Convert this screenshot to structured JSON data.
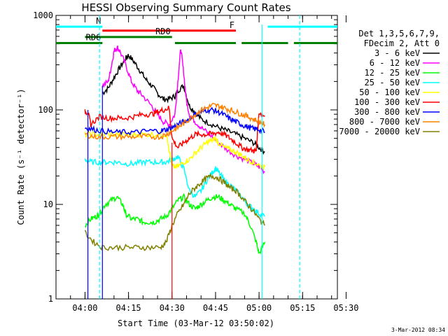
{
  "chart_data": {
    "type": "line",
    "title": "HESSI Observing Summary Count Rates",
    "xlabel": "Start Time (03-Mar-12 03:50:02)",
    "ylabel": "Count Rate (s⁻¹ detector⁻¹)",
    "yscale": "log",
    "ylim": [
      1,
      1000
    ],
    "x_minutes_range": [
      0,
      97
    ],
    "x_ticks": [
      {
        "label": "04:00",
        "t": 10
      },
      {
        "label": "04:15",
        "t": 25
      },
      {
        "label": "04:30",
        "t": 40
      },
      {
        "label": "04:45",
        "t": 55
      },
      {
        "label": "05:00",
        "t": 70
      },
      {
        "label": "05:15",
        "t": 85
      },
      {
        "label": "05:30",
        "t": 100
      }
    ],
    "y_ticks": [
      {
        "label": "1",
        "v": 1
      },
      {
        "label": "10",
        "v": 10
      },
      {
        "label": "100",
        "v": 100
      },
      {
        "label": "1000",
        "v": 1000
      }
    ],
    "legend_header": [
      "Det 1,3,5,6,7,9,",
      "FDecim 2, Att 0"
    ],
    "legend_position": "right",
    "series": [
      {
        "name": "3 - 6 keV",
        "color": "#000000",
        "points": [
          [
            16,
            150
          ],
          [
            18,
            170
          ],
          [
            20,
            220
          ],
          [
            22,
            280
          ],
          [
            24,
            350
          ],
          [
            25,
            380
          ],
          [
            27,
            320
          ],
          [
            29,
            260
          ],
          [
            31,
            210
          ],
          [
            33,
            180
          ],
          [
            35,
            150
          ],
          [
            37,
            130
          ],
          [
            39,
            130
          ],
          [
            41,
            140
          ],
          [
            42,
            160
          ],
          [
            44,
            180
          ],
          [
            46,
            110
          ],
          [
            48,
            95
          ],
          [
            50,
            80
          ],
          [
            53,
            72
          ],
          [
            56,
            65
          ],
          [
            59,
            60
          ],
          [
            62,
            55
          ],
          [
            65,
            50
          ],
          [
            68,
            45
          ],
          [
            70,
            40
          ],
          [
            72,
            36
          ]
        ]
      },
      {
        "name": "6 - 12 keV",
        "color": "#ff00ff",
        "points": [
          [
            16,
            180
          ],
          [
            18,
            200
          ],
          [
            19,
            280
          ],
          [
            20,
            420
          ],
          [
            21,
            460
          ],
          [
            22,
            420
          ],
          [
            24,
            300
          ],
          [
            26,
            200
          ],
          [
            28,
            160
          ],
          [
            30,
            140
          ],
          [
            33,
            110
          ],
          [
            35,
            90
          ],
          [
            37,
            75
          ],
          [
            39,
            70
          ],
          [
            41,
            90
          ],
          [
            42,
            200
          ],
          [
            43,
            450
          ],
          [
            44,
            250
          ],
          [
            45,
            120
          ],
          [
            46,
            90
          ],
          [
            48,
            75
          ],
          [
            50,
            65
          ],
          [
            53,
            55
          ],
          [
            56,
            45
          ],
          [
            59,
            38
          ],
          [
            62,
            33
          ],
          [
            65,
            30
          ],
          [
            68,
            27
          ],
          [
            70,
            25
          ],
          [
            72,
            22
          ]
        ]
      },
      {
        "name": "12 - 25 keV",
        "color": "#00ff00",
        "points": [
          [
            10,
            6
          ],
          [
            12,
            7
          ],
          [
            14,
            7.5
          ],
          [
            15,
            8
          ],
          [
            17,
            10
          ],
          [
            19,
            11
          ],
          [
            21,
            12
          ],
          [
            23,
            10
          ],
          [
            24,
            8
          ],
          [
            26,
            7
          ],
          [
            28,
            7
          ],
          [
            30,
            6.5
          ],
          [
            32,
            6.5
          ],
          [
            34,
            6.5
          ],
          [
            36,
            7
          ],
          [
            38,
            7.5
          ],
          [
            40,
            9
          ],
          [
            42,
            11
          ],
          [
            44,
            12
          ],
          [
            46,
            10
          ],
          [
            48,
            9
          ],
          [
            50,
            10
          ],
          [
            52,
            11
          ],
          [
            54,
            12
          ],
          [
            56,
            12
          ],
          [
            58,
            11
          ],
          [
            60,
            10
          ],
          [
            62,
            9
          ],
          [
            65,
            8
          ],
          [
            67,
            6
          ],
          [
            69,
            4
          ],
          [
            70,
            3
          ],
          [
            72,
            4
          ]
        ]
      },
      {
        "name": "25 - 50 keV",
        "color": "#00ffff",
        "points": [
          [
            10,
            30
          ],
          [
            12,
            28
          ],
          [
            15,
            28
          ],
          [
            18,
            28
          ],
          [
            21,
            28
          ],
          [
            24,
            27
          ],
          [
            27,
            27
          ],
          [
            30,
            28
          ],
          [
            33,
            28
          ],
          [
            36,
            28
          ],
          [
            38,
            28
          ],
          [
            40,
            30
          ],
          [
            42,
            32
          ],
          [
            44,
            24
          ],
          [
            46,
            14
          ],
          [
            48,
            12
          ],
          [
            50,
            14
          ],
          [
            52,
            18
          ],
          [
            54,
            22
          ],
          [
            55,
            24
          ],
          [
            56,
            22
          ],
          [
            58,
            18
          ],
          [
            60,
            16
          ],
          [
            62,
            14
          ],
          [
            64,
            12
          ],
          [
            66,
            10
          ],
          [
            68,
            9
          ],
          [
            70,
            8
          ],
          [
            72,
            7.5
          ]
        ]
      },
      {
        "name": "50 - 100 keV",
        "color": "#ffff00",
        "points": [
          [
            10,
            55
          ],
          [
            13,
            55
          ],
          [
            16,
            55
          ],
          [
            20,
            55
          ],
          [
            24,
            55
          ],
          [
            28,
            55
          ],
          [
            32,
            55
          ],
          [
            36,
            55
          ],
          [
            38,
            55
          ],
          [
            40,
            25
          ],
          [
            42,
            25
          ],
          [
            44,
            28
          ],
          [
            46,
            30
          ],
          [
            48,
            35
          ],
          [
            50,
            40
          ],
          [
            52,
            45
          ],
          [
            54,
            48
          ],
          [
            55,
            50
          ],
          [
            56,
            45
          ],
          [
            58,
            40
          ],
          [
            60,
            38
          ],
          [
            62,
            36
          ],
          [
            64,
            33
          ],
          [
            66,
            30
          ],
          [
            68,
            28
          ],
          [
            70,
            26
          ],
          [
            72,
            25
          ]
        ]
      },
      {
        "name": "100 - 300 keV",
        "color": "#ff0000",
        "points": [
          [
            10,
            95
          ],
          [
            11,
            95
          ],
          [
            12,
            70
          ],
          [
            15,
            85
          ],
          [
            18,
            82
          ],
          [
            21,
            82
          ],
          [
            24,
            82
          ],
          [
            27,
            85
          ],
          [
            30,
            90
          ],
          [
            33,
            90
          ],
          [
            35,
            95
          ],
          [
            37,
            100
          ],
          [
            39,
            105
          ],
          [
            40,
            50
          ],
          [
            42,
            40
          ],
          [
            44,
            45
          ],
          [
            46,
            50
          ],
          [
            48,
            55
          ],
          [
            50,
            55
          ],
          [
            52,
            55
          ],
          [
            54,
            56
          ],
          [
            56,
            58
          ],
          [
            58,
            55
          ],
          [
            60,
            50
          ],
          [
            62,
            45
          ],
          [
            64,
            40
          ],
          [
            66,
            38
          ],
          [
            68,
            37
          ],
          [
            69,
            37
          ],
          [
            70,
            95
          ],
          [
            72,
            85
          ]
        ]
      },
      {
        "name": "300 - 800 keV",
        "color": "#0000ff",
        "points": [
          [
            10,
            65
          ],
          [
            13,
            62
          ],
          [
            16,
            60
          ],
          [
            20,
            58
          ],
          [
            24,
            58
          ],
          [
            28,
            58
          ],
          [
            32,
            60
          ],
          [
            36,
            60
          ],
          [
            38,
            62
          ],
          [
            40,
            65
          ],
          [
            42,
            70
          ],
          [
            44,
            75
          ],
          [
            46,
            80
          ],
          [
            48,
            90
          ],
          [
            50,
            95
          ],
          [
            52,
            100
          ],
          [
            54,
            100
          ],
          [
            56,
            95
          ],
          [
            58,
            88
          ],
          [
            60,
            80
          ],
          [
            62,
            75
          ],
          [
            64,
            70
          ],
          [
            66,
            66
          ],
          [
            68,
            63
          ],
          [
            70,
            62
          ],
          [
            72,
            58
          ]
        ]
      },
      {
        "name": "800 - 7000 keV",
        "color": "#ff8000",
        "points": [
          [
            10,
            55
          ],
          [
            13,
            52
          ],
          [
            16,
            52
          ],
          [
            20,
            52
          ],
          [
            24,
            52
          ],
          [
            28,
            52
          ],
          [
            32,
            52
          ],
          [
            36,
            52
          ],
          [
            38,
            55
          ],
          [
            40,
            60
          ],
          [
            42,
            65
          ],
          [
            44,
            72
          ],
          [
            46,
            80
          ],
          [
            48,
            90
          ],
          [
            50,
            100
          ],
          [
            52,
            105
          ],
          [
            54,
            112
          ],
          [
            56,
            110
          ],
          [
            58,
            105
          ],
          [
            60,
            100
          ],
          [
            62,
            95
          ],
          [
            64,
            90
          ],
          [
            66,
            85
          ],
          [
            68,
            80
          ],
          [
            70,
            75
          ],
          [
            72,
            70
          ]
        ]
      },
      {
        "name": "7000 - 20000 keV",
        "color": "#808000",
        "points": [
          [
            10,
            5
          ],
          [
            13,
            4
          ],
          [
            16,
            3.5
          ],
          [
            20,
            3.5
          ],
          [
            24,
            3.5
          ],
          [
            28,
            3.5
          ],
          [
            32,
            3.5
          ],
          [
            36,
            3.5
          ],
          [
            38,
            4
          ],
          [
            40,
            6
          ],
          [
            42,
            8
          ],
          [
            44,
            10
          ],
          [
            46,
            13
          ],
          [
            48,
            15
          ],
          [
            50,
            17
          ],
          [
            52,
            19
          ],
          [
            54,
            20
          ],
          [
            56,
            19
          ],
          [
            58,
            17
          ],
          [
            60,
            15
          ],
          [
            62,
            14
          ],
          [
            64,
            12
          ],
          [
            66,
            10
          ],
          [
            68,
            8.5
          ],
          [
            70,
            7
          ],
          [
            72,
            6
          ]
        ]
      }
    ],
    "flags": [
      {
        "label": "N",
        "color": "#00ffff",
        "y": 760,
        "segments": [
          [
            0,
            16
          ]
        ]
      },
      {
        "label": "",
        "color": "#00ffff",
        "y": 760,
        "segments": [
          [
            73,
            97
          ]
        ]
      },
      {
        "label": "F",
        "color": "#ff0000",
        "y": 690,
        "segments": [
          [
            16,
            62
          ]
        ]
      },
      {
        "label": "RD0",
        "color": "#008000",
        "y": 590,
        "segments": [
          [
            10,
            40
          ]
        ]
      },
      {
        "label": "RD6",
        "color": "#008000",
        "y": 510,
        "segments": [
          [
            0,
            16
          ],
          [
            41,
            62
          ],
          [
            64,
            80
          ],
          [
            82,
            97
          ]
        ]
      }
    ],
    "vlines": [
      {
        "t": 11,
        "color": "#0000ff",
        "style": "solid",
        "top": 100
      },
      {
        "t": 15,
        "color": "#00ffff",
        "style": "dashed",
        "top": 1000
      },
      {
        "t": 16,
        "color": "#0000ff",
        "style": "solid",
        "top": 180
      },
      {
        "t": 40,
        "color": "#ff0000",
        "style": "solid",
        "top": 45
      },
      {
        "t": 71,
        "color": "#00ffff",
        "style": "solid",
        "top": 800
      },
      {
        "t": 84,
        "color": "#00ffff",
        "style": "dashed",
        "top": 1000
      }
    ],
    "footer": "3-Mar-2012 08:34"
  }
}
